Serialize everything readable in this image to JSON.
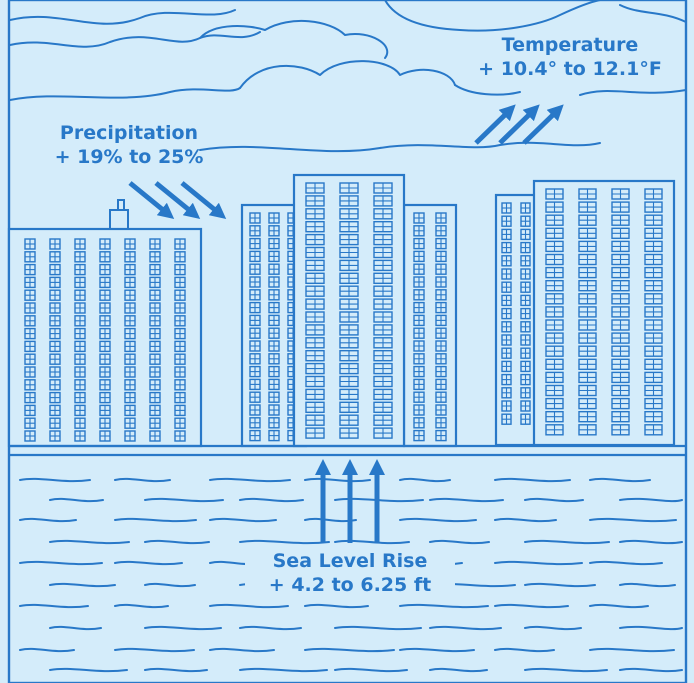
{
  "colors": {
    "background": "#d4ecfa",
    "line": "#2878c8"
  },
  "labels": {
    "temperature": {
      "title": "Temperature",
      "value": "+ 10.4° to 12.1°F"
    },
    "precipitation": {
      "title": "Precipitation",
      "value": "+ 19% to 25%"
    },
    "sea_level": {
      "title": "Sea Level Rise",
      "value": "+ 4.2 to 6.25 ft"
    }
  },
  "icons": {
    "temperature_arrows": "arrow-up-right-icon",
    "precipitation_arrows": "arrow-down-right-icon",
    "sea_level_arrows": "arrow-up-icon"
  }
}
